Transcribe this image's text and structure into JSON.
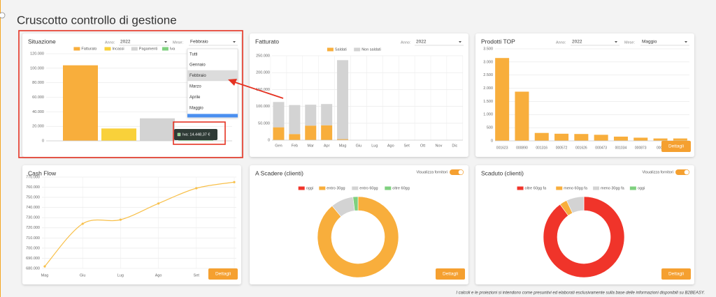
{
  "header": {
    "title": "Cruscotto controllo di gestione"
  },
  "footer": {
    "note": "I calcoli e le proiezioni si intendono come presuntivi ed elaborati esclusivamente sulla base delle informazioni disponibili su B2BEASY."
  },
  "chart_data": [
    {
      "type": "bar",
      "title": "Situazione",
      "filters": [
        {
          "label": "Anno:",
          "value": "2022"
        },
        {
          "label": "Mese:",
          "value": "Febbraio",
          "options": [
            "Tutti",
            "Gennaio",
            "Febbraio",
            "Marzo",
            "Aprile",
            "Maggio"
          ]
        }
      ],
      "series": [
        {
          "name": "Fatturato",
          "color": "#f8ae3c",
          "values": [
            104000
          ]
        },
        {
          "name": "Incassi",
          "color": "#f9d13a",
          "values": [
            17000
          ]
        },
        {
          "name": "Pagamenti",
          "color": "#d3d3d3",
          "values": [
            31000
          ]
        },
        {
          "name": "Iva",
          "color": "#7fd07f",
          "values": [
            14448.37
          ],
          "value_labels": [
            "Iva: 14.448,37 €"
          ]
        }
      ],
      "ylim": [
        0,
        120000
      ],
      "yticks": [
        0,
        {
          "value": 20000,
          "label": "20.000"
        },
        {
          "value": 40000,
          "label": "40.000"
        },
        {
          "value": 60000,
          "label": "60.000"
        },
        {
          "value": 80000,
          "label": "80.000"
        },
        {
          "value": 100000,
          "label": "100.000"
        },
        {
          "value": 120000,
          "label": "120.000"
        }
      ],
      "grid": true
    },
    {
      "type": "bar",
      "title": "Fatturato",
      "stacked": true,
      "filters": [
        {
          "label": "Anno:",
          "value": "2022"
        }
      ],
      "categories": [
        "Gen",
        "Feb",
        "Mar",
        "Apr",
        "Mag",
        "Giu",
        "Lug",
        "Ago",
        "Set",
        "Ott",
        "Nov",
        "Dic"
      ],
      "series": [
        {
          "name": "Saldati",
          "color": "#f8ae3c",
          "values": [
            38000,
            18000,
            43000,
            44000,
            3000,
            null,
            null,
            null,
            null,
            null,
            null,
            null
          ]
        },
        {
          "name": "Non saldati",
          "color": "#d3d3d3",
          "values": [
            75000,
            86000,
            62000,
            63000,
            234000,
            null,
            null,
            null,
            null,
            null,
            null,
            null
          ]
        }
      ],
      "ylim": [
        0,
        250000
      ],
      "yticks": [
        0,
        {
          "value": 50000,
          "label": "50.000"
        },
        {
          "value": 100000,
          "label": "100.000"
        },
        {
          "value": 150000,
          "label": "150.000"
        },
        {
          "value": 200000,
          "label": "200.000"
        },
        {
          "value": 250000,
          "label": "250.000"
        }
      ],
      "grid": true
    },
    {
      "type": "bar",
      "title": "Prodotti TOP",
      "filters": [
        {
          "label": "Anno:",
          "value": "2022"
        },
        {
          "label": "Mese:",
          "value": "Maggio"
        }
      ],
      "categories": [
        "001623",
        "000890",
        "001316",
        "000572",
        "001626",
        "000473",
        "001034",
        "000873",
        "0003",
        null
      ],
      "values": [
        3150,
        1870,
        300,
        270,
        260,
        230,
        160,
        120,
        90,
        90
      ],
      "color": "#f8ae3c",
      "ylim": [
        0,
        3500
      ],
      "yticks": [
        0,
        500,
        {
          "value": 1000,
          "label": "1.000"
        },
        {
          "value": 1500,
          "label": "1.500"
        },
        {
          "value": 2000,
          "label": "2.000"
        },
        {
          "value": 2500,
          "label": "2.500"
        },
        {
          "value": 3000,
          "label": "3.000"
        },
        {
          "value": 3500,
          "label": "3.500"
        }
      ],
      "grid": true,
      "button": "Dettagli"
    },
    {
      "type": "line",
      "title": "Cash Flow",
      "categories": [
        "Mag",
        "Giu",
        "Lug",
        "Ago",
        "Set",
        null
      ],
      "values": [
        682000,
        724000,
        728000,
        744000,
        759000,
        765000
      ],
      "color": "#f8c04a",
      "ylim": [
        680000,
        770000
      ],
      "yticks": [
        {
          "value": 680000,
          "label": "680.000"
        },
        {
          "value": 690000,
          "label": "690.000"
        },
        {
          "value": 700000,
          "label": "700.000"
        },
        {
          "value": 710000,
          "label": "710.000"
        },
        {
          "value": 720000,
          "label": "720.000"
        },
        {
          "value": 730000,
          "label": "730.000"
        },
        {
          "value": 740000,
          "label": "740.000"
        },
        {
          "value": 750000,
          "label": "750.000"
        },
        {
          "value": 760000,
          "label": "760.000"
        },
        {
          "value": 770000,
          "label": "770.000"
        }
      ],
      "grid": true,
      "button": "Dettagli"
    },
    {
      "type": "donut",
      "title": "A Scadere (clienti)",
      "toggle": "Visualizza fornitori",
      "categories": [
        "oggi",
        "entro 30gg",
        "entro 60gg",
        "oltre 60gg"
      ],
      "values": [
        0,
        89,
        9,
        2
      ],
      "colors": [
        "#f0342a",
        "#f8ae3c",
        "#d3d3d3",
        "#7fd07f"
      ],
      "button": "Dettagli"
    },
    {
      "type": "donut",
      "title": "Scaduto (clienti)",
      "toggle": "Visualizza fornitori",
      "categories": [
        "oltre 60gg fa",
        "meno 60gg fa",
        "meno 30gg fa",
        "oggi"
      ],
      "values": [
        90,
        3,
        7,
        0
      ],
      "colors": [
        "#f0342a",
        "#f8ae3c",
        "#d3d3d3",
        "#7fd07f"
      ],
      "button": "Dettagli"
    }
  ]
}
